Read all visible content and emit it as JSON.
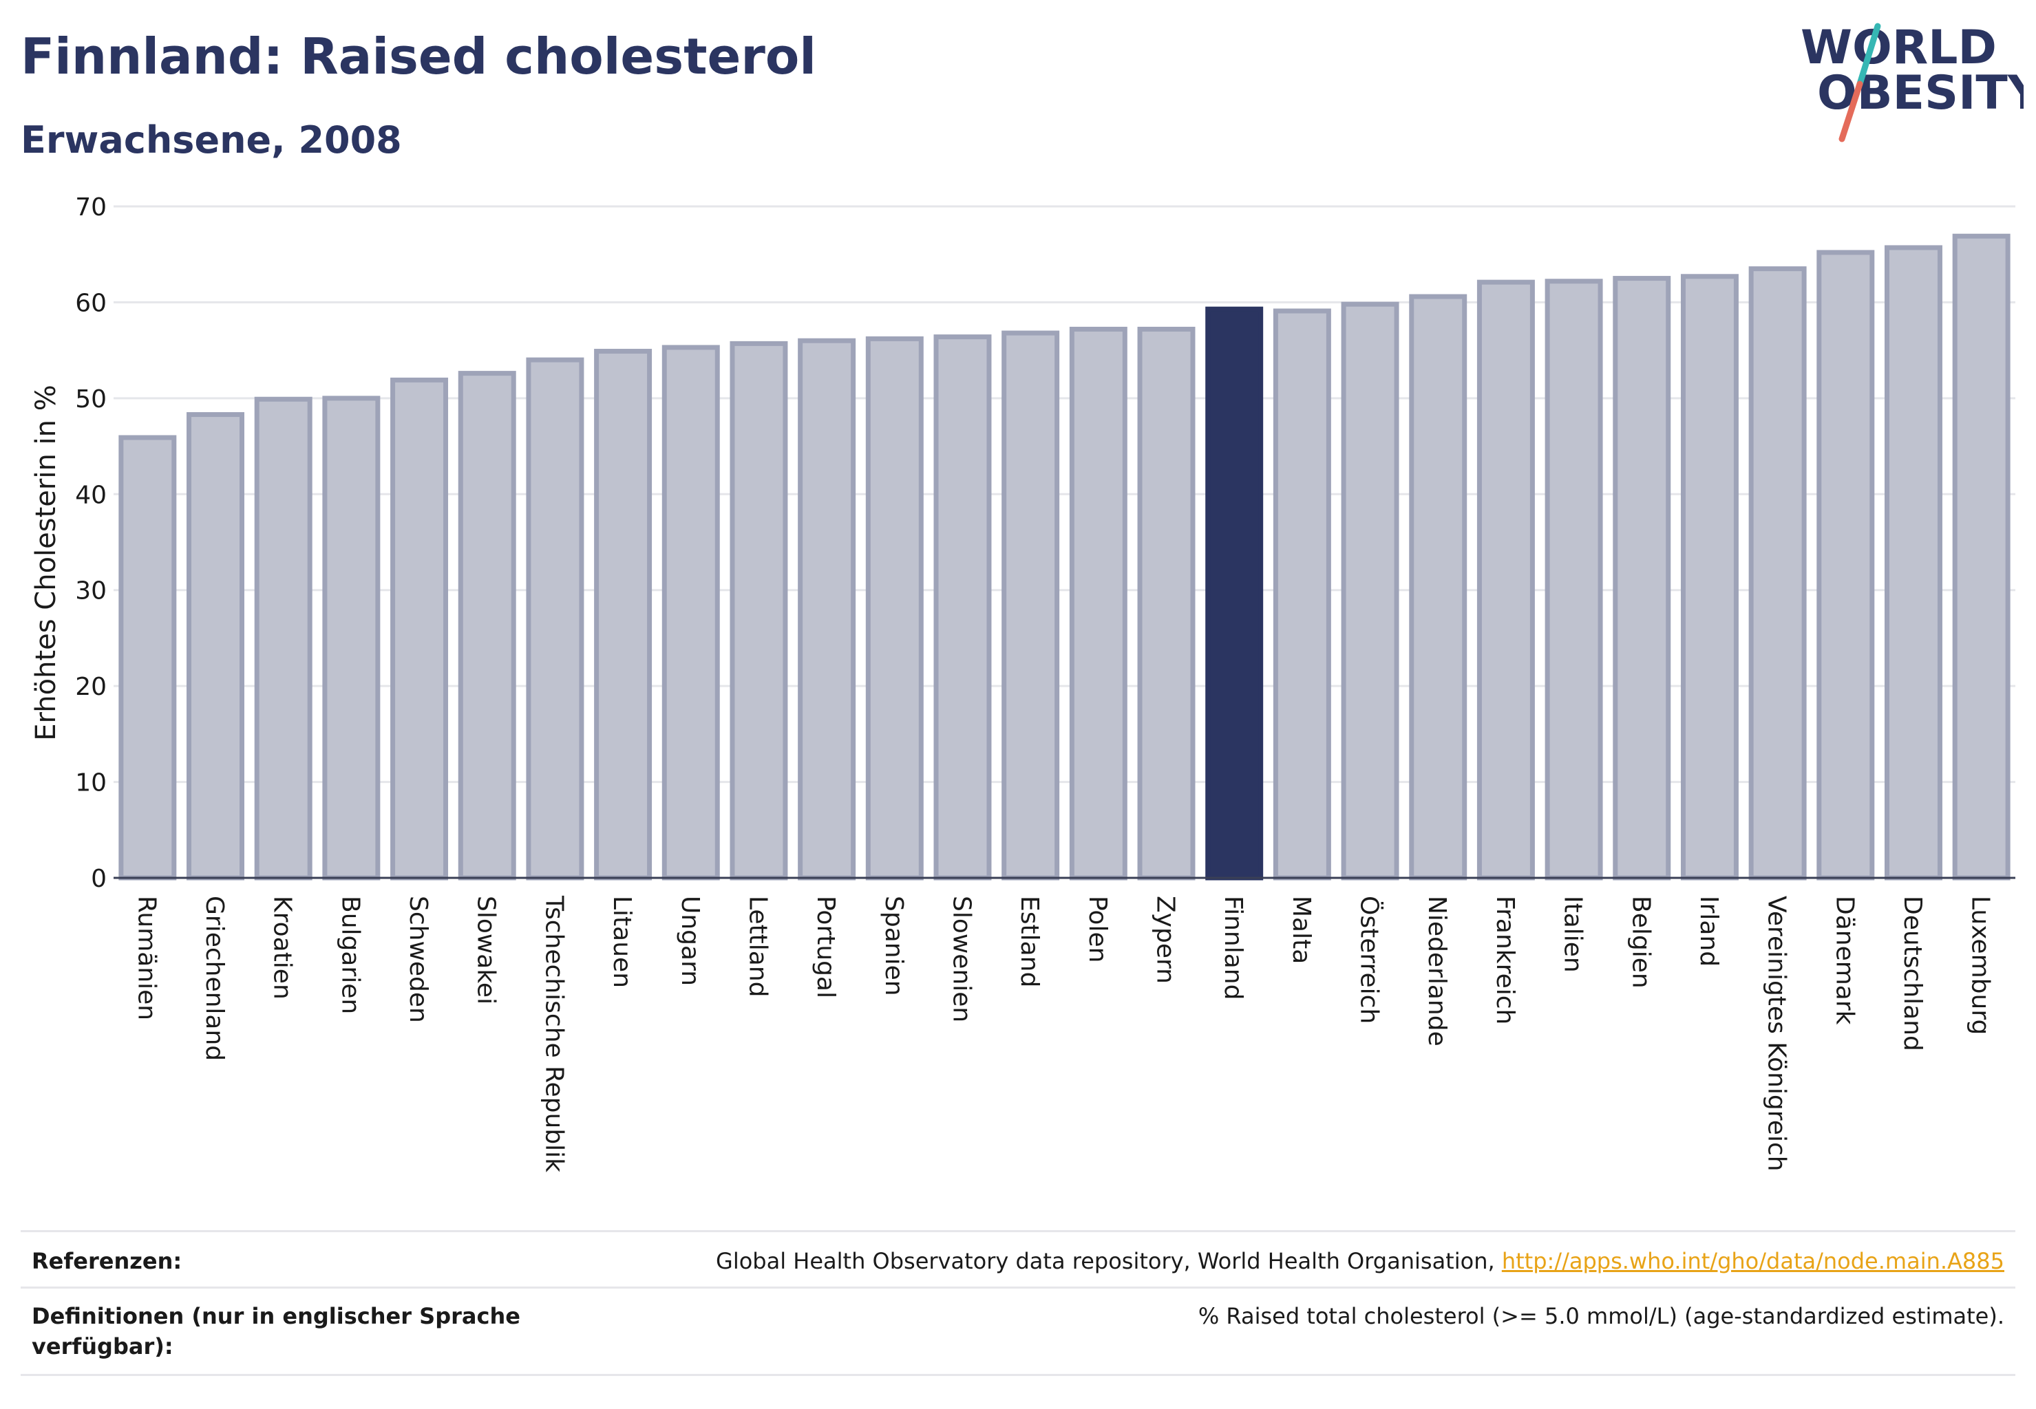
{
  "header": {
    "title": "Finnland: Raised cholesterol",
    "subtitle": "Erwachsene, 2008"
  },
  "logo": {
    "line1": "WORLD",
    "line2": "OBESITY",
    "colors": {
      "text": "#2b3561",
      "slash_top": "#36b7b4",
      "slash_bottom": "#e46b5a"
    }
  },
  "colors": {
    "bar": "#bfc2cf",
    "bar_border": "#9ea3b8",
    "highlight": "#2b3561",
    "grid": "#e5e6ea"
  },
  "chart_data": {
    "type": "bar",
    "ylabel": "Erhöhtes Cholesterin in %",
    "ylim": [
      0,
      70
    ],
    "yticks": [
      0,
      10,
      20,
      30,
      40,
      50,
      60,
      70
    ],
    "grid": true,
    "highlight": "Finnland",
    "categories": [
      "Rumänien",
      "Griechenland",
      "Kroatien",
      "Bulgarien",
      "Schweden",
      "Slowakei",
      "Tschechische Republik",
      "Litauen",
      "Ungarn",
      "Lettland",
      "Portugal",
      "Spanien",
      "Slowenien",
      "Estland",
      "Polen",
      "Zypern",
      "Finnland",
      "Malta",
      "Österreich",
      "Niederlande",
      "Frankreich",
      "Italien",
      "Belgien",
      "Irland",
      "Vereinigtes Königreich",
      "Dänemark",
      "Deutschland",
      "Luxemburg"
    ],
    "values": [
      45.9,
      48.3,
      49.9,
      50.0,
      51.9,
      52.6,
      54.0,
      54.9,
      55.3,
      55.7,
      56.0,
      56.2,
      56.4,
      56.8,
      57.2,
      57.2,
      59.3,
      59.1,
      59.8,
      60.6,
      62.1,
      62.2,
      62.5,
      62.7,
      63.5,
      65.2,
      65.7,
      66.9
    ]
  },
  "footer": {
    "references_label": "Referenzen:",
    "references_text": "Global Health Observatory data repository, World Health Organisation, ",
    "references_link": "http://apps.who.int/gho/data/node.main.A885",
    "definitions_label": "Definitionen (nur in englischer Sprache verfügbar):",
    "definitions_text": "% Raised total cholesterol (>= 5.0 mmol/L) (age-standardized estimate)."
  }
}
